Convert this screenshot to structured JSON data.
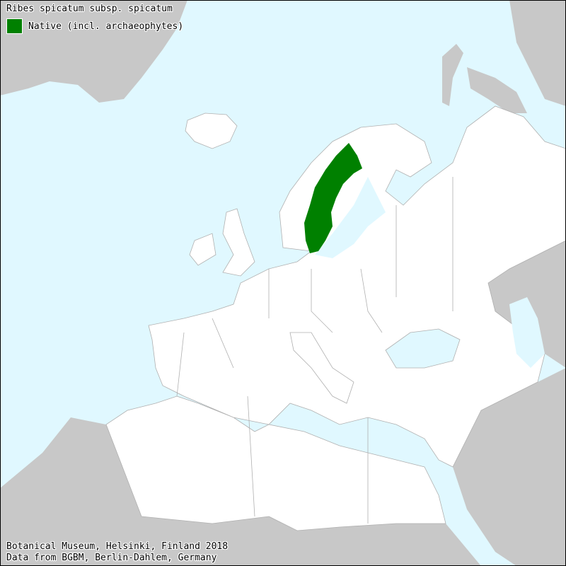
{
  "map": {
    "title": "Ribes spicatum subsp. spicatum",
    "legend": [
      {
        "label": "Native (incl. archaeophytes)",
        "color": "#008000"
      }
    ],
    "colors": {
      "sea": "#e0f8ff",
      "outside_land": "#c8c8c8",
      "mapped_land": "#ffffff",
      "borders": "#b0b0b0",
      "native": "#008000"
    },
    "credits": [
      "Botanical Museum, Helsinki, Finland 2018",
      "Data from BGBM, Berlin-Dahlem, Germany"
    ]
  }
}
